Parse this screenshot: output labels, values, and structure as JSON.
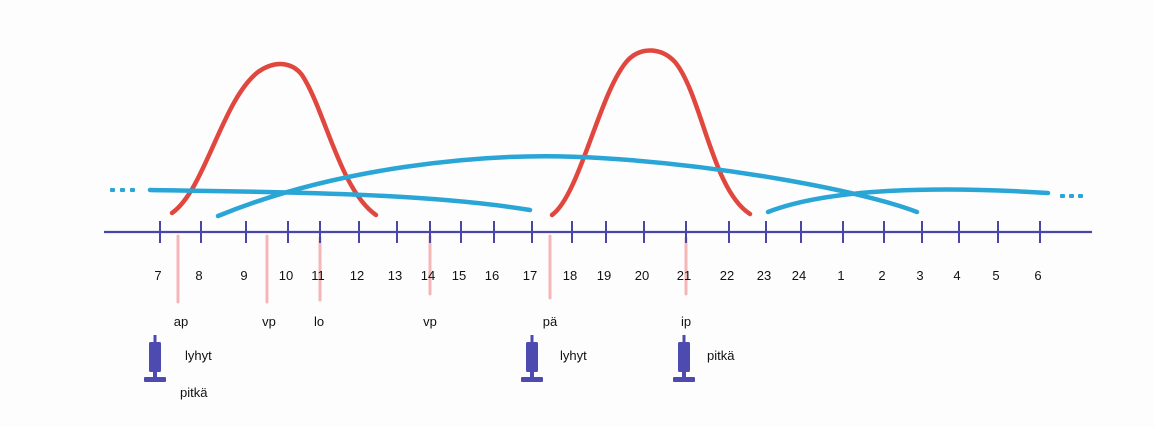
{
  "hours": [
    "7",
    "8",
    "9",
    "10",
    "11",
    "12",
    "13",
    "14",
    "15",
    "16",
    "17",
    "18",
    "19",
    "20",
    "21",
    "22",
    "23",
    "24",
    "1",
    "2",
    "3",
    "4",
    "5",
    "6"
  ],
  "meals": [
    {
      "label": "ap",
      "hour": "7"
    },
    {
      "label": "vp",
      "hour": "9"
    },
    {
      "label": "lo",
      "hour": "11"
    },
    {
      "label": "vp",
      "hour": "14"
    },
    {
      "label": "pä",
      "hour": "17"
    },
    {
      "label": "ip",
      "hour": "21"
    }
  ],
  "injections": [
    {
      "hour": "7",
      "labels": [
        "lyhyt",
        "pitkä"
      ]
    },
    {
      "hour": "17",
      "labels": [
        "lyhyt"
      ]
    },
    {
      "hour": "21",
      "labels": [
        "pitkä"
      ]
    }
  ],
  "colors": {
    "timeline": "#4a46a8",
    "meal_marker": "#f4b6b8",
    "short_insulin": "#e0483f",
    "long_insulin": "#2aa6d6",
    "pen": "#4d4bb0"
  }
}
